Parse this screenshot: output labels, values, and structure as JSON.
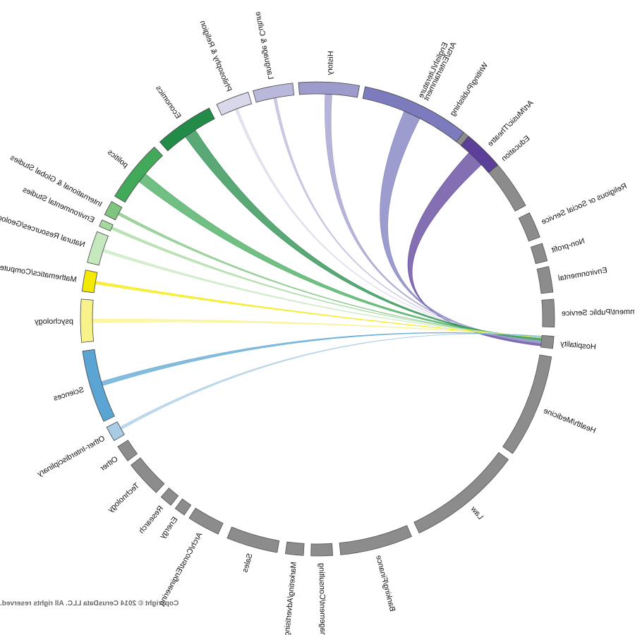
{
  "diagram": {
    "type": "chord",
    "mirrored": true,
    "hub": "Hospitality",
    "colors": {
      "careers": "#8c8c8c",
      "career_stroke": "#555555"
    },
    "majors": [
      {
        "label": "Art/Music/Theatre",
        "color": "#5b3f98",
        "w": 0.022
      },
      {
        "label": "English/Literature",
        "color": "#7c7bbd",
        "w": 0.024
      },
      {
        "label": "History",
        "color": "#9d9bcb",
        "w": 0.008
      },
      {
        "label": "Language & Culture",
        "color": "#b9b8db",
        "w": 0.002
      },
      {
        "label": "Philosophy & Religion",
        "color": "#d9d8ea",
        "w": 0.001
      },
      {
        "label": "Economics",
        "color": "#228b47",
        "w": 0.014
      },
      {
        "label": "politics",
        "color": "#43a95a",
        "w": 0.012
      },
      {
        "label": "International & Global Studies",
        "color": "#7fc47f",
        "w": 0.001
      },
      {
        "label": "Environmental Studies",
        "color": "#a6d99e",
        "w": 0.001
      },
      {
        "label": "Natural Resources/Geology/Forestry",
        "color": "#c6e8bf",
        "w": 0.001
      },
      {
        "label": "Mathematics/Computer Science",
        "color": "#f4e900",
        "w": 0.003
      },
      {
        "label": "psychology",
        "color": "#f8f28a",
        "w": 0.004
      },
      {
        "label": "Sciences",
        "color": "#5aa5d3",
        "w": 0.005
      },
      {
        "label": "Other-Interdisciplinary",
        "color": "#a8cce5",
        "w": 0.001
      }
    ],
    "careers": [
      "Other",
      "Technology",
      "Research",
      "Energy",
      "Arch/Const/Engineering",
      "Sales",
      "Marketing/Advertising",
      "Management/Consulting",
      "Banking/Finance",
      "Law",
      "Health/Medicine",
      "Hospitality",
      "Government/Public Service",
      "Environmental",
      "Non-profit",
      "Religious or Social Service",
      "Education",
      "Writing/Publishing",
      "Arts/Entertainment"
    ]
  },
  "copyright": "Copyright © 2014 CerusData LLC.  All rights reserved."
}
